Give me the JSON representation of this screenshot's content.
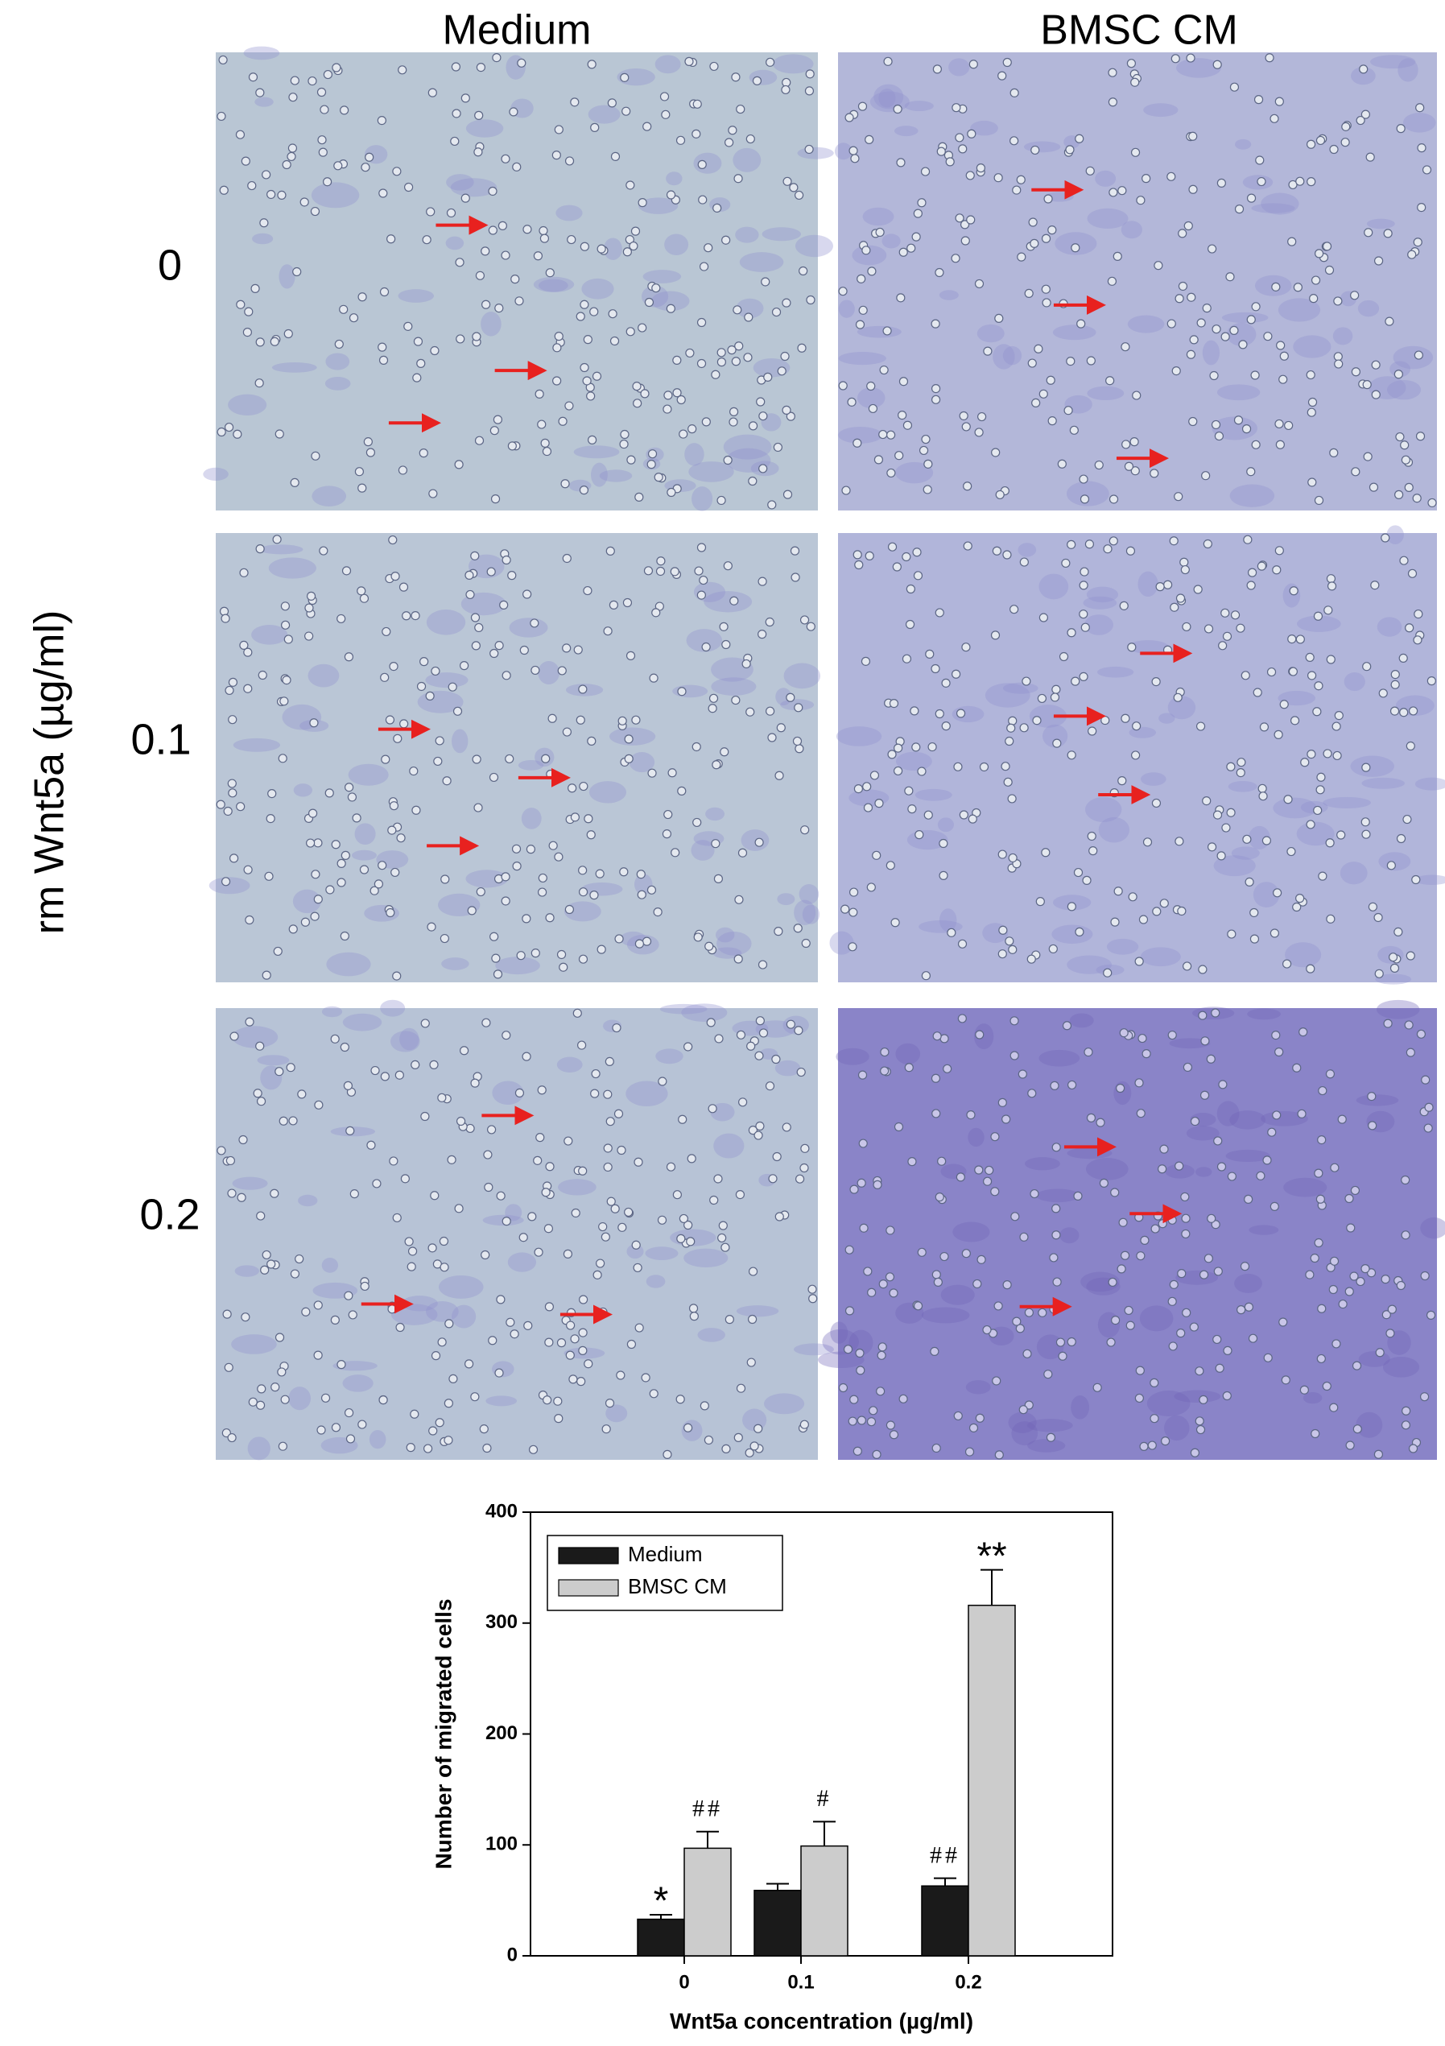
{
  "panels": {
    "columns": [
      "Medium",
      "BMSC CM"
    ],
    "rows": [
      "0",
      "0.1",
      "0.2"
    ],
    "row_axis_label": "rm Wnt5a (µg/ml)"
  },
  "chart_data": {
    "type": "bar",
    "y_label": "Number of migrated cells",
    "x_label": "Wnt5a concentration (µg/ml)",
    "categories": [
      "0",
      "0.1",
      "0.2"
    ],
    "series": [
      {
        "name": "Medium",
        "color": "#1a1a1a",
        "values": [
          33,
          59,
          63
        ],
        "errors": [
          4,
          6,
          7
        ],
        "annotations": [
          "*",
          null,
          "##"
        ]
      },
      {
        "name": "BMSC CM",
        "color": "#cccccc",
        "values": [
          97,
          99,
          316
        ],
        "errors": [
          15,
          22,
          32
        ],
        "annotations": [
          "##",
          "#",
          "**"
        ]
      }
    ],
    "ylim": [
      0,
      400
    ],
    "yticks": [
      0,
      100,
      200,
      300,
      400
    ],
    "legend": "upper-left",
    "grid": false
  }
}
